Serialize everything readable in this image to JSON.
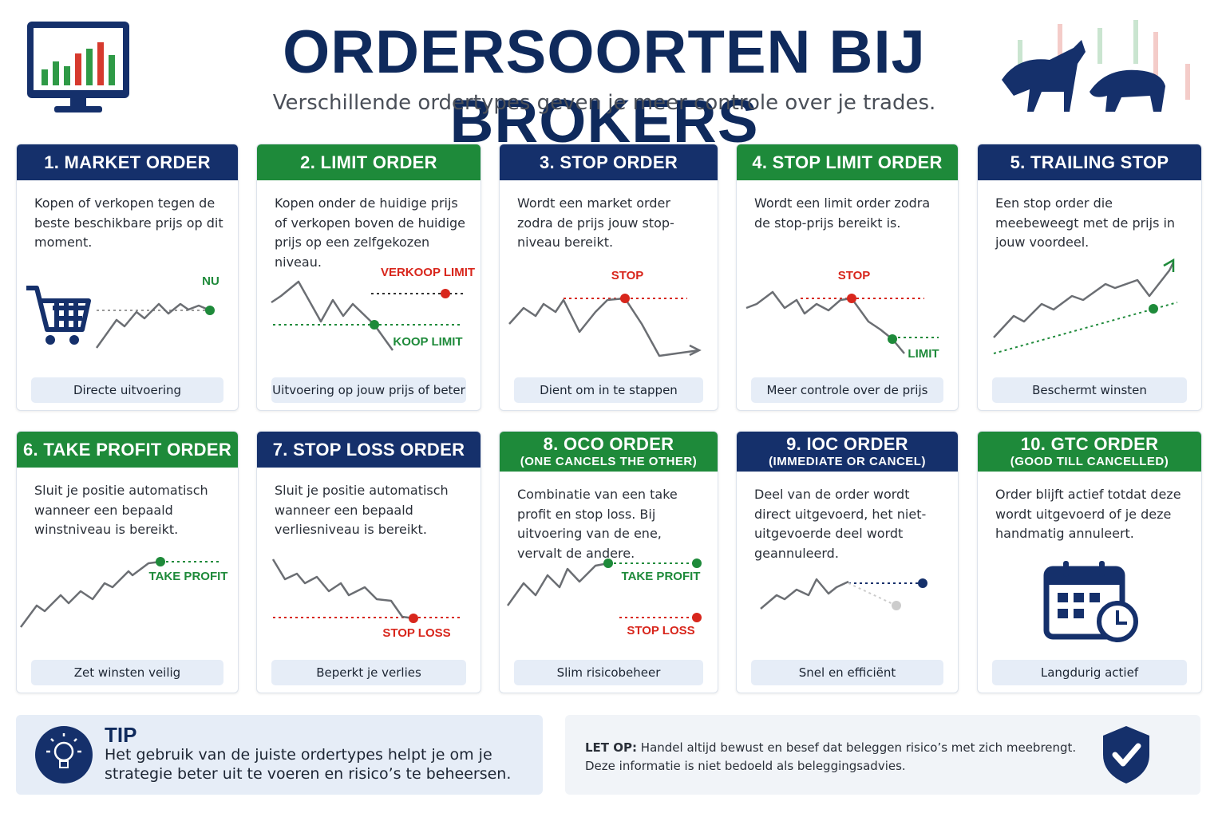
{
  "header": {
    "title": "ORDERSOORTEN BIJ BROKERS",
    "subtitle": "Verschillende ordertypes geven je meer controle over je trades."
  },
  "cards": [
    {
      "title": "1. MARKET ORDER",
      "description": "Kopen of verkopen tegen de beste beschikbare prijs op dit moment.",
      "labels": [
        "NU"
      ],
      "footer": "Directe uitvoering"
    },
    {
      "title": "2. LIMIT ORDER",
      "description": "Kopen onder de huidige prijs of verkopen boven de huidige prijs op een zelfgekozen niveau.",
      "labels": [
        "VERKOOP LIMIT",
        "KOOP LIMIT"
      ],
      "footer": "Uitvoering op jouw prijs of beter"
    },
    {
      "title": "3. STOP ORDER",
      "description": "Wordt een market order zodra de prijs jouw stop-niveau bereikt.",
      "labels": [
        "STOP"
      ],
      "footer": "Dient om in te stappen"
    },
    {
      "title": "4. STOP LIMIT ORDER",
      "description": "Wordt een limit order zodra de stop-prijs bereikt is.",
      "labels": [
        "STOP",
        "LIMIT"
      ],
      "footer": "Meer controle over de prijs"
    },
    {
      "title": "5. TRAILING STOP",
      "description": "Een stop order die meebeweegt met de prijs in jouw voordeel.",
      "labels": [],
      "footer": "Beschermt winsten"
    },
    {
      "title": "6. TAKE PROFIT ORDER",
      "description": "Sluit je positie automatisch wanneer een bepaald winstniveau is bereikt.",
      "labels": [
        "TAKE PROFIT"
      ],
      "footer": "Zet winsten veilig"
    },
    {
      "title": "7. STOP LOSS ORDER",
      "description": "Sluit je positie automatisch wanneer een bepaald verliesniveau is bereikt.",
      "labels": [
        "STOP LOSS"
      ],
      "footer": "Beperkt je verlies"
    },
    {
      "title": "8. OCO ORDER",
      "subtitle": "(ONE CANCELS THE OTHER)",
      "description": "Combinatie van een take profit en stop loss. Bij uitvoering van de ene, vervalt de andere.",
      "labels": [
        "TAKE PROFIT",
        "STOP LOSS"
      ],
      "footer": "Slim risicobeheer"
    },
    {
      "title": "9. IOC ORDER",
      "subtitle": "(IMMEDIATE OR CANCEL)",
      "description": "Deel van de order wordt direct uitgevoerd, het niet-uitgevoerde deel wordt geannuleerd.",
      "labels": [],
      "footer": "Snel en efficiënt"
    },
    {
      "title": "10. GTC ORDER",
      "subtitle": "(GOOD TILL CANCELLED)",
      "description": "Order blijft actief totdat deze wordt uitgevoerd of je deze handmatig annuleert.",
      "labels": [],
      "footer": "Langdurig actief"
    }
  ],
  "tip": {
    "title": "TIP",
    "text": "Het gebruik van de juiste ordertypes helpt je om je strategie beter uit te voeren en risico’s te beheersen."
  },
  "note": {
    "label": "LET OP:",
    "text": "Handel altijd bewust en besef dat beleggen risico’s met zich meebrengt. Deze informatie is niet bedoeld als beleggingsadvies."
  }
}
